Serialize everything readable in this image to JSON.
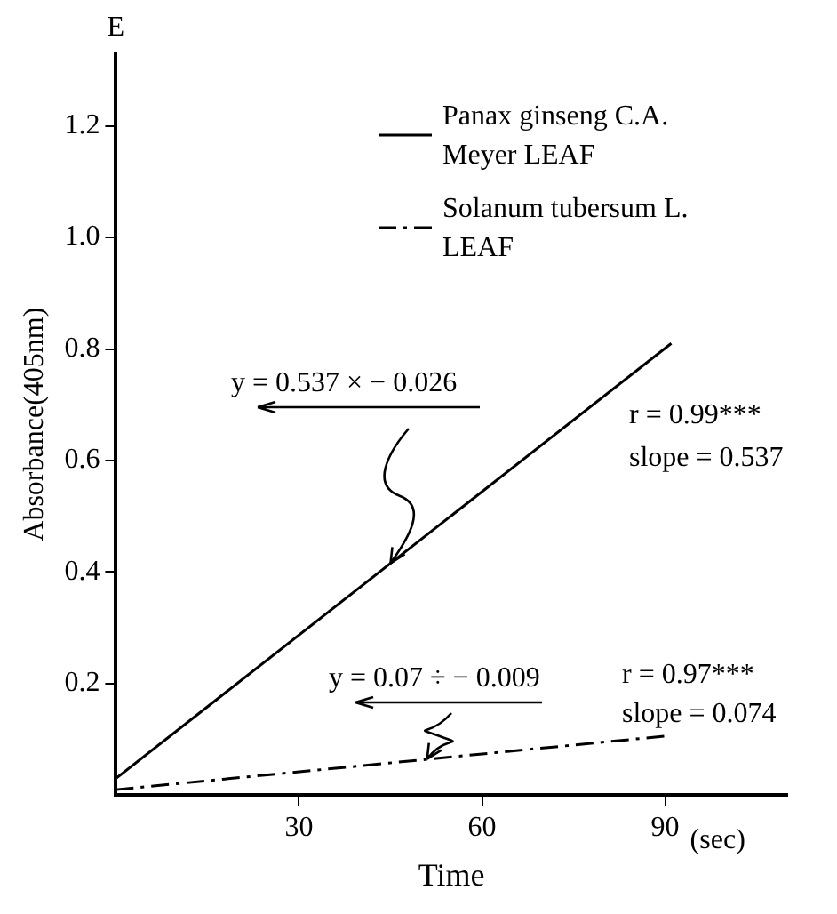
{
  "chart_data": {
    "type": "line",
    "xlabel": "Time",
    "ylabel": "Absorbance(405nm)",
    "xlim": [
      0,
      110
    ],
    "xticks": [
      30,
      60,
      90
    ],
    "ylim": [
      0,
      1.33
    ],
    "yticks": [
      0.2,
      0.4,
      0.6,
      0.8,
      {
        "value": 1,
        "label": "1.0"
      },
      1.2
    ],
    "series": [
      {
        "name": "Panax ginseng C.A. Meyer LEAF",
        "color": "#000000",
        "line_style": "solid",
        "x": [
          0,
          91
        ],
        "values": [
          0.03,
          0.81
        ]
      },
      {
        "name": "Solanum tubersum L. LEAF",
        "color": "#000000",
        "line_style": "dashed",
        "x": [
          0,
          90
        ],
        "values": [
          0.01,
          0.106
        ]
      }
    ],
    "annotations": [
      "E",
      "(sec)",
      {
        "text": "y = 0.537 × − 0.026",
        "x": 45,
        "y": 0.416
      },
      "r = 0.99***",
      "slope = 0.537",
      {
        "text": "y = 0.07 ÷ − 0.009",
        "x": 51,
        "y": 0.065
      },
      "r = 0.97***",
      "slope = 0.074"
    ],
    "legend": "top right",
    "grid": false,
    "marker": "none"
  }
}
